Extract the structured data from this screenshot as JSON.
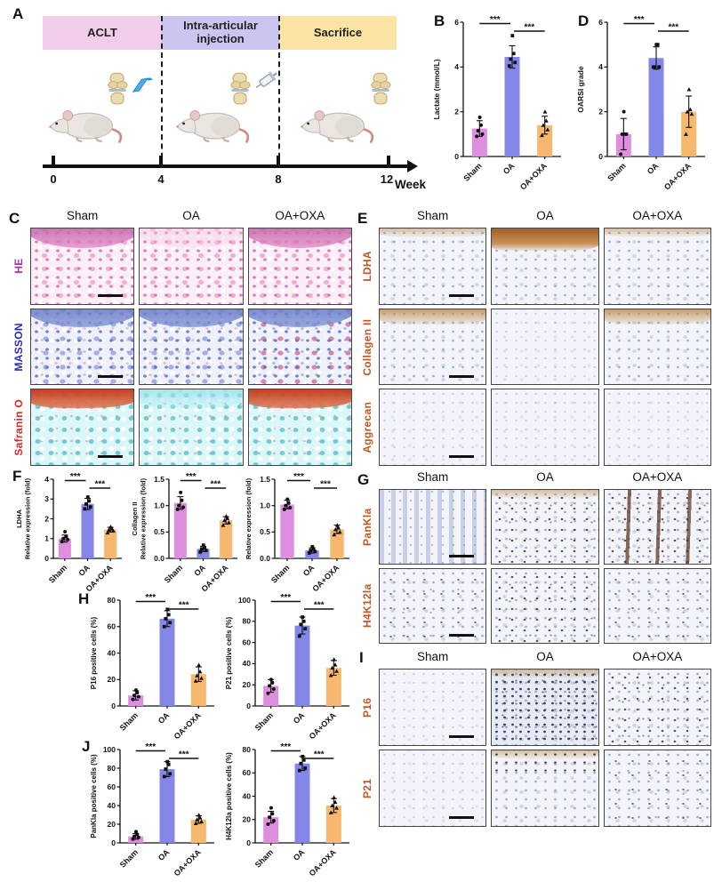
{
  "letters": {
    "A": "A",
    "B": "B",
    "C": "C",
    "D": "D",
    "E": "E",
    "F": "F",
    "G": "G",
    "H": "H",
    "I": "I",
    "J": "J"
  },
  "timeline": {
    "phases": [
      {
        "label": "ACLT",
        "color": "#F2CDE9"
      },
      {
        "label": "Intra-articular injection",
        "color": "#CBC6F0"
      },
      {
        "label": "Sacrifice",
        "color": "#FBE3A4"
      }
    ],
    "week_ticks": [
      "0",
      "4",
      "8",
      "12"
    ],
    "axis_label": "Week",
    "icons": {
      "surgery": "scalpel-icon",
      "injection": "syringe-icon",
      "joint": "knee-joint-icon",
      "animal": "mouse-icon"
    }
  },
  "colors": {
    "bars": [
      "#DE8EDE",
      "#8486EA",
      "#F7B76F"
    ],
    "axis": "#111111",
    "he_label": "#B02DA8",
    "masson_label": "#2B2BC4",
    "safranin_label": "#E02424",
    "ihc_label": "#C8551F"
  },
  "histology": [
    {
      "id": "C",
      "columns": [
        "Sham",
        "OA",
        "OA+OXA"
      ],
      "rows": [
        {
          "label": "HE",
          "color": "#B02DA8",
          "cells": [
            "t-he",
            "t-he he-oa",
            "t-he"
          ]
        },
        {
          "label": "MASSON",
          "color": "#2B2BC4",
          "cells": [
            "t-masson",
            "t-masson",
            "t-masson masson-oxa"
          ]
        },
        {
          "label": "Safranin O",
          "color": "#E02424",
          "cells": [
            "t-safo",
            "t-safo safo-oa",
            "t-safo"
          ]
        }
      ]
    },
    {
      "id": "E",
      "columns": [
        "Sham",
        "OA",
        "OA+OXA"
      ],
      "rows": [
        {
          "label": "LDHA",
          "color": "#C8551F",
          "cells": [
            "t-ihc brown-light",
            "t-ihc brown-strong",
            "t-ihc brown-light"
          ]
        },
        {
          "label": "Collagen II",
          "color": "#C8551F",
          "cells": [
            "t-ihc brown-med",
            "t-ihc faint",
            "t-ihc brown-med"
          ]
        },
        {
          "label": "Aggrecan",
          "color": "#C8551F",
          "cells": [
            "t-ihc faint",
            "t-ihc faint",
            "t-ihc faint"
          ]
        }
      ]
    },
    {
      "id": "G",
      "columns": [
        "Sham",
        "OA",
        "OA+OXA"
      ],
      "rows": [
        {
          "label": "PanKla",
          "color": "#C8551F",
          "cells": [
            "t-ihc cols-blue",
            "t-ihc dots brown-light",
            "t-ihc dots cols-dark"
          ]
        },
        {
          "label": "H4K12la",
          "color": "#C8551F",
          "cells": [
            "t-ihc sparse",
            "t-ihc dots",
            "t-ihc sparse"
          ]
        }
      ]
    },
    {
      "id": "I",
      "columns": [
        "Sham",
        "OA",
        "OA+OXA"
      ],
      "rows": [
        {
          "label": "P16",
          "color": "#C8551F",
          "cells": [
            "t-ihc pale",
            "t-ihc dense-dots tint-blue brown-light",
            "t-ihc dots"
          ]
        },
        {
          "label": "P21",
          "color": "#C8551F",
          "cells": [
            "t-ihc pale",
            "t-ihc topdots brown-light",
            "t-ihc sparse"
          ]
        }
      ]
    }
  ],
  "chart_data": [
    {
      "id": "B",
      "type": "bar",
      "categories": [
        "Sham",
        "OA",
        "OA+OXA"
      ],
      "values": [
        1.25,
        4.45,
        1.4
      ],
      "errors": [
        0.35,
        0.5,
        0.4
      ],
      "points": [
        [
          0.9,
          1.0,
          1.15,
          1.4,
          1.75
        ],
        [
          4.05,
          4.2,
          4.35,
          4.6,
          5.4
        ],
        [
          0.95,
          1.2,
          1.4,
          1.6,
          2.0
        ]
      ],
      "ylabel": "Lactate (mmol/L)",
      "ylim": [
        0,
        6
      ],
      "yticks": [
        0,
        2,
        4,
        6
      ],
      "ytick_labels": [
        "0",
        "2",
        "4",
        "6"
      ],
      "sig": [
        {
          "a": 0,
          "b": 1,
          "label": "***"
        },
        {
          "a": 1,
          "b": 2,
          "label": "***"
        }
      ]
    },
    {
      "id": "D",
      "type": "bar",
      "categories": [
        "Sham",
        "OA",
        "OA+OXA"
      ],
      "values": [
        1.0,
        4.4,
        2.0
      ],
      "errors": [
        0.7,
        0.5,
        0.7
      ],
      "points": [
        [
          0.1,
          1.0,
          1.0,
          1.0,
          2.0
        ],
        [
          4.0,
          4.0,
          4.0,
          5.0,
          5.0
        ],
        [
          1.0,
          1.9,
          2.0,
          2.1,
          3.0
        ]
      ],
      "ylabel": "OARSI grade",
      "ylim": [
        0,
        6
      ],
      "yticks": [
        0,
        2,
        4,
        6
      ],
      "ytick_labels": [
        "0",
        "2",
        "4",
        "6"
      ],
      "sig": [
        {
          "a": 0,
          "b": 1,
          "label": "***"
        },
        {
          "a": 1,
          "b": 2,
          "label": "***"
        }
      ]
    },
    {
      "id": "F1",
      "type": "bar",
      "categories": [
        "Sham",
        "OA",
        "OA+OXA"
      ],
      "values": [
        1.0,
        2.75,
        1.45
      ],
      "errors": [
        0.18,
        0.28,
        0.12
      ],
      "points": [
        [
          0.85,
          0.95,
          1.0,
          1.1,
          1.35
        ],
        [
          2.5,
          2.6,
          2.75,
          2.9,
          3.1
        ],
        [
          1.3,
          1.4,
          1.45,
          1.5,
          1.6
        ]
      ],
      "ylabel": "Relative expression (fold)",
      "ylabel2": "LDHA",
      "ylabel_size": 7.5,
      "ylim": [
        0,
        4
      ],
      "yticks": [
        0,
        1,
        2,
        3,
        4
      ],
      "ytick_labels": [
        "0",
        "1",
        "2",
        "3",
        "4"
      ],
      "sig": [
        {
          "a": 0,
          "b": 1,
          "label": "***"
        },
        {
          "a": 1,
          "b": 2,
          "label": "***"
        }
      ]
    },
    {
      "id": "F2",
      "type": "bar",
      "categories": [
        "Sham",
        "OA",
        "OA+OXA"
      ],
      "values": [
        1.05,
        0.18,
        0.72
      ],
      "errors": [
        0.12,
        0.05,
        0.07
      ],
      "points": [
        [
          0.93,
          0.97,
          1.0,
          1.1,
          1.25
        ],
        [
          0.12,
          0.15,
          0.18,
          0.2,
          0.25
        ],
        [
          0.63,
          0.68,
          0.72,
          0.76,
          0.8
        ]
      ],
      "ylabel": "Relative expression (fold)",
      "ylabel2": "Collagen II",
      "ylabel_size": 7.5,
      "ylim": [
        0,
        1.5
      ],
      "yticks": [
        0,
        0.5,
        1,
        1.5
      ],
      "ytick_labels": [
        "0.0",
        "0.5",
        "1.0",
        "1.5"
      ],
      "sig": [
        {
          "a": 0,
          "b": 1,
          "label": "***"
        },
        {
          "a": 1,
          "b": 2,
          "label": "***"
        }
      ]
    },
    {
      "id": "F3",
      "type": "bar",
      "categories": [
        "Sham",
        "OA",
        "OA+OXA"
      ],
      "values": [
        1.02,
        0.15,
        0.55
      ],
      "errors": [
        0.08,
        0.05,
        0.08
      ],
      "points": [
        [
          0.93,
          0.96,
          1.0,
          1.05,
          1.12
        ],
        [
          0.1,
          0.13,
          0.15,
          0.18,
          0.22
        ],
        [
          0.45,
          0.5,
          0.55,
          0.58,
          0.63
        ]
      ],
      "ylabel": "Relative expression (fold)",
      "ylabel_size": 7.5,
      "ylim": [
        0,
        1.5
      ],
      "yticks": [
        0,
        0.5,
        1,
        1.5
      ],
      "ytick_labels": [
        "0.0",
        "0.5",
        "1.0",
        "1.5"
      ],
      "sig": [
        {
          "a": 0,
          "b": 1,
          "label": "***"
        },
        {
          "a": 1,
          "b": 2,
          "label": "***"
        }
      ]
    },
    {
      "id": "H1",
      "type": "bar",
      "categories": [
        "Sham",
        "OA",
        "OA+OXA"
      ],
      "values": [
        8,
        66,
        24
      ],
      "errors": [
        3.5,
        6,
        5.5
      ],
      "points": [
        [
          5,
          7,
          8,
          10,
          12
        ],
        [
          60,
          63,
          66,
          69,
          73
        ],
        [
          19,
          21,
          23,
          26,
          31
        ]
      ],
      "ylabel": "P16 positive cells (%)",
      "ylabel_size": 8,
      "ylim": [
        0,
        80
      ],
      "yticks": [
        0,
        20,
        40,
        60,
        80
      ],
      "ytick_labels": [
        "0",
        "20",
        "40",
        "60",
        "80"
      ],
      "sig": [
        {
          "a": 0,
          "b": 1,
          "label": "***"
        },
        {
          "a": 1,
          "b": 2,
          "label": "***"
        }
      ]
    },
    {
      "id": "H2",
      "type": "bar",
      "categories": [
        "Sham",
        "OA",
        "OA+OXA"
      ],
      "values": [
        19,
        76,
        36
      ],
      "errors": [
        6,
        8,
        7
      ],
      "points": [
        [
          12,
          16,
          19,
          22,
          25
        ],
        [
          66,
          73,
          77,
          80,
          84
        ],
        [
          29,
          33,
          36,
          39,
          44
        ]
      ],
      "ylabel": "P21 positive cells (%)",
      "ylabel_size": 8,
      "ylim": [
        0,
        100
      ],
      "yticks": [
        0,
        20,
        40,
        60,
        80,
        100
      ],
      "ytick_labels": [
        "0",
        "20",
        "40",
        "60",
        "80",
        "100"
      ],
      "sig": [
        {
          "a": 0,
          "b": 1,
          "label": "***"
        },
        {
          "a": 1,
          "b": 2,
          "label": "***"
        }
      ]
    },
    {
      "id": "J1",
      "type": "bar",
      "categories": [
        "Sham",
        "OA",
        "OA+OXA"
      ],
      "values": [
        7,
        79,
        25
      ],
      "errors": [
        3,
        8,
        4
      ],
      "points": [
        [
          4,
          6,
          7,
          9,
          12
        ],
        [
          71,
          74,
          79,
          84,
          87
        ],
        [
          21,
          23,
          25,
          27,
          30
        ]
      ],
      "ylabel": "PanKla positive cells (%)",
      "ylabel_size": 8,
      "ylim": [
        0,
        100
      ],
      "yticks": [
        0,
        20,
        40,
        60,
        80,
        100
      ],
      "ytick_labels": [
        "0",
        "20",
        "40",
        "60",
        "80",
        "100"
      ],
      "sig": [
        {
          "a": 0,
          "b": 1,
          "label": "***"
        },
        {
          "a": 1,
          "b": 2,
          "label": "***"
        }
      ]
    },
    {
      "id": "J2",
      "type": "bar",
      "categories": [
        "Sham",
        "OA",
        "OA+OXA"
      ],
      "values": [
        22,
        68,
        32
      ],
      "errors": [
        5,
        6,
        6
      ],
      "points": [
        [
          16,
          19,
          22,
          25,
          30
        ],
        [
          62,
          64,
          68,
          71,
          74
        ],
        [
          26,
          30,
          32,
          35,
          39
        ]
      ],
      "ylabel": "H4K12la positive cells (%)",
      "ylabel_size": 8,
      "ylim": [
        0,
        80
      ],
      "yticks": [
        0,
        20,
        40,
        60,
        80
      ],
      "ytick_labels": [
        "0",
        "20",
        "40",
        "60",
        "80"
      ],
      "sig": [
        {
          "a": 0,
          "b": 1,
          "label": "***"
        },
        {
          "a": 1,
          "b": 2,
          "label": "***"
        }
      ]
    }
  ]
}
